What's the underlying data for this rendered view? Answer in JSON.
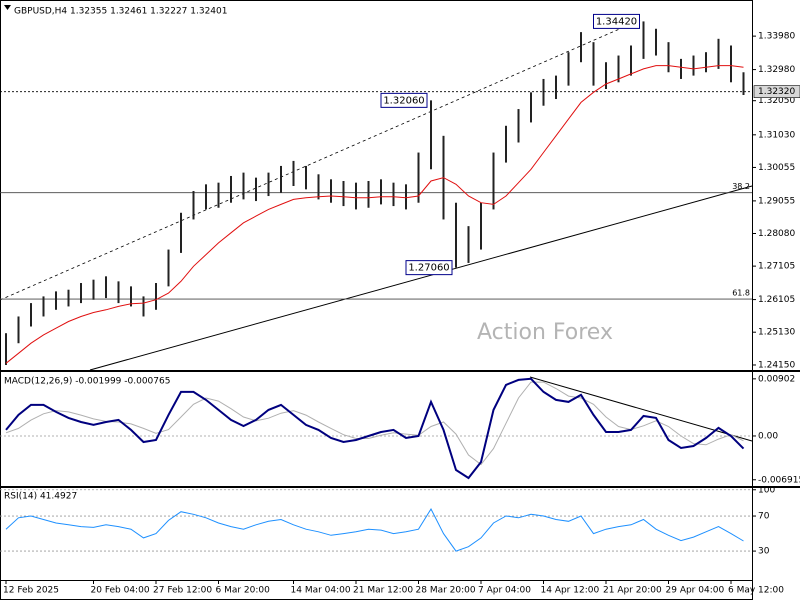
{
  "chart_data": [
    {
      "type": "ohlc",
      "title": "GBPUSD,H4  1.32355 1.32461 1.32227 1.32401",
      "color": "#222222",
      "categories": [
        "12 Feb 2025",
        null,
        null,
        null,
        null,
        null,
        null,
        "20 Feb 04:00",
        null,
        null,
        null,
        null,
        "27 Feb 12:00",
        null,
        null,
        null,
        null,
        "6 Mar 20:00",
        null,
        null,
        null,
        null,
        null,
        "14 Mar 04:00",
        null,
        null,
        null,
        null,
        "21 Mar 12:00",
        null,
        null,
        null,
        null,
        "28 Mar 20:00",
        null,
        null,
        null,
        null,
        "7 Apr 04:00",
        null,
        null,
        null,
        null,
        "14 Apr 12:00",
        null,
        null,
        null,
        null,
        "21 Apr 20:00",
        null,
        null,
        null,
        null,
        "29 Apr 04:00",
        null,
        null,
        null,
        null,
        "6 May 12:00",
        null
      ],
      "high": [
        1.251,
        1.256,
        1.26,
        1.262,
        1.2635,
        1.264,
        1.266,
        1.267,
        1.268,
        1.2665,
        1.265,
        1.262,
        1.266,
        1.276,
        1.287,
        1.2935,
        1.2955,
        1.296,
        1.298,
        1.299,
        1.2975,
        1.299,
        1.301,
        1.3025,
        1.301,
        1.2985,
        1.297,
        1.2965,
        1.296,
        1.2965,
        1.297,
        1.296,
        1.2955,
        1.305,
        1.3206,
        1.31,
        1.29,
        1.283,
        1.29,
        1.305,
        1.313,
        1.318,
        1.323,
        1.327,
        1.328,
        1.335,
        1.341,
        1.338,
        1.332,
        1.334,
        1.337,
        1.3442,
        1.342,
        1.338,
        1.333,
        1.334,
        1.335,
        1.339,
        1.337,
        1.329
      ],
      "low": [
        1.2415,
        1.248,
        1.253,
        1.256,
        1.258,
        1.259,
        1.26,
        1.261,
        1.2615,
        1.26,
        1.259,
        1.256,
        1.258,
        1.265,
        1.275,
        1.285,
        1.288,
        1.2885,
        1.29,
        1.291,
        1.2905,
        1.292,
        1.293,
        1.295,
        1.294,
        1.291,
        1.29,
        1.289,
        1.288,
        1.2885,
        1.2895,
        1.289,
        1.288,
        1.29,
        1.3,
        1.285,
        1.2706,
        1.272,
        1.276,
        1.288,
        1.302,
        1.308,
        1.314,
        1.319,
        1.321,
        1.325,
        1.332,
        1.325,
        1.324,
        1.326,
        1.328,
        1.333,
        1.334,
        1.329,
        1.327,
        1.328,
        1.329,
        1.33,
        1.326,
        1.3222
      ],
      "ma": {
        "color": "#e01010",
        "values": [
          1.242,
          1.245,
          1.248,
          1.2505,
          1.2525,
          1.2545,
          1.256,
          1.2572,
          1.258,
          1.259,
          1.2598,
          1.26,
          1.261,
          1.263,
          1.2665,
          1.271,
          1.2745,
          1.278,
          1.281,
          1.284,
          1.286,
          1.288,
          1.2895,
          1.291,
          1.2915,
          1.2918,
          1.292,
          1.2918,
          1.2915,
          1.2915,
          1.2918,
          1.2918,
          1.2915,
          1.292,
          1.2965,
          1.2975,
          1.2955,
          1.292,
          1.29,
          1.2895,
          1.292,
          1.296,
          1.3,
          1.305,
          1.31,
          1.315,
          1.32,
          1.323,
          1.3255,
          1.327,
          1.3285,
          1.33,
          1.331,
          1.331,
          1.3305,
          1.33,
          1.3305,
          1.331,
          1.331,
          1.3305
        ]
      },
      "ylim": [
        1.24,
        1.3506
      ],
      "yticks": [
        {
          "value": 1.3398,
          "label": "1.33980"
        },
        {
          "value": 1.3298,
          "label": "1.32980"
        },
        {
          "value": 1.3205,
          "label": "1.32050"
        },
        {
          "value": 1.3103,
          "label": "1.31030"
        },
        {
          "value": 1.30055,
          "label": "1.30055"
        },
        {
          "value": 1.29055,
          "label": "1.29055"
        },
        {
          "value": 1.2808,
          "label": "1.28080"
        },
        {
          "value": 1.27105,
          "label": "1.27105"
        },
        {
          "value": 1.26105,
          "label": "1.26105"
        },
        {
          "value": 1.2513,
          "label": "1.25130"
        },
        {
          "value": 1.2415,
          "label": "1.24150"
        }
      ],
      "current": {
        "value": 1.3232,
        "label": "1.32320"
      },
      "levels": [
        {
          "value": 1.293,
          "label": "38.2"
        },
        {
          "value": 1.2612,
          "label": "61.8"
        }
      ],
      "annotations": [
        {
          "value": 1.3206,
          "label": "1.32060"
        },
        {
          "value": 1.2706,
          "label": "1.27060"
        },
        {
          "value": 1.3442,
          "label": "1.34420"
        }
      ],
      "watermark": "Action Forex"
    },
    {
      "type": "line",
      "title": "MACD(12,26,9) -0.001999 -0.000765",
      "zero_line": true,
      "series": [
        {
          "color": "#00007f",
          "width": 2,
          "values": [
            0.00095,
            0.00332,
            0.0049,
            0.0049,
            0.0038,
            0.00285,
            0.00221,
            0.00174,
            0.00221,
            0.00253,
            0.00095,
            -0.00095,
            -0.00063,
            0.00332,
            0.00696,
            0.00696,
            0.0057,
            0.00411,
            0.00253,
            0.00158,
            0.00253,
            0.00411,
            0.0049,
            0.00332,
            0.00174,
            0.00095,
            -0.00032,
            -0.00095,
            -0.00063,
            0,
            0.00063,
            0.00095,
            -0.00032,
            0,
            0.00538,
            0.00095,
            -0.00538,
            -0.00664,
            -0.00411,
            0.00411,
            0.00807,
            0.00886,
            0.00902,
            0.00696,
            0.0057,
            0.00538,
            0.00649,
            0.00332,
            0.00063,
            0.00063,
            0.00095,
            0.00316,
            0.00285,
            -0.00063,
            -0.0019,
            -0.00158,
            -0.00032,
            0.00127,
            0,
            -0.001999
          ]
        },
        {
          "color": "#b0b0b0",
          "width": 1,
          "values": [
            0.0005,
            0.0012,
            0.0025,
            0.0035,
            0.004,
            0.0038,
            0.0033,
            0.0027,
            0.0023,
            0.0022,
            0.0019,
            0.0012,
            0.0004,
            0.001,
            0.003,
            0.005,
            0.006,
            0.0055,
            0.0043,
            0.003,
            0.0024,
            0.0028,
            0.0036,
            0.004,
            0.0033,
            0.0022,
            0.0012,
            0.0002,
            -0.0004,
            -0.0004,
            0.0001,
            0.0005,
            0.0003,
            0.0001,
            0.0015,
            0.0022,
            0.0003,
            -0.003,
            -0.0045,
            -0.002,
            0.002,
            0.006,
            0.0085,
            0.0085,
            0.0075,
            0.0063,
            0.006,
            0.005,
            0.003,
            0.0015,
            0.001,
            0.0016,
            0.0024,
            0.0015,
            0,
            -0.0012,
            -0.0014,
            -0.0005,
            0.0002,
            -0.000765
          ]
        }
      ],
      "ylim": [
        -0.0079,
        0.0101
      ],
      "yticks": [
        0.00902,
        {
          "value": 0,
          "label": "0.00"
        },
        -0.006915
      ]
    },
    {
      "type": "line",
      "title": "RSI(14) 41.4927",
      "grid": true,
      "series": [
        {
          "color": "#1e90ff",
          "width": 1,
          "values": [
            55,
            68,
            70,
            66,
            62,
            60,
            58,
            57,
            60,
            58,
            55,
            45,
            50,
            65,
            75,
            72,
            68,
            62,
            58,
            55,
            60,
            64,
            66,
            60,
            55,
            52,
            48,
            50,
            52,
            55,
            54,
            50,
            52,
            55,
            78,
            50,
            30,
            35,
            45,
            62,
            70,
            68,
            72,
            70,
            66,
            64,
            70,
            50,
            55,
            58,
            60,
            66,
            55,
            48,
            42,
            46,
            52,
            58,
            50,
            41.4927
          ]
        }
      ],
      "ylim": [
        -3,
        102
      ],
      "yticks": [
        100,
        70,
        30
      ]
    }
  ]
}
